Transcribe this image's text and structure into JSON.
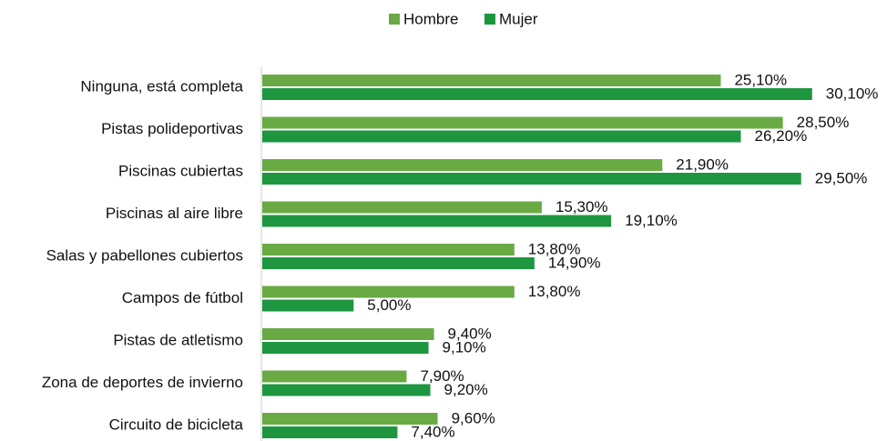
{
  "chart_data": {
    "type": "bar",
    "orientation": "horizontal",
    "categories": [
      "Ninguna, está completa",
      "Pistas polideportivas",
      "Piscinas cubiertas",
      "Piscinas al aire libre",
      "Salas y pabellones cubiertos",
      "Campos de fútbol",
      "Pistas de atletismo",
      "Zona de deportes de invierno",
      "Circuito de bicicleta"
    ],
    "series": [
      {
        "name": "Hombre",
        "color": "#6aaa45",
        "values": [
          25.1,
          28.5,
          21.9,
          15.3,
          13.8,
          13.8,
          9.4,
          7.9,
          9.6
        ],
        "value_labels": [
          "25,10%",
          "28,50%",
          "21,90%",
          "15,30%",
          "13,80%",
          "13,80%",
          "9,40%",
          "7,90%",
          "9,60%"
        ]
      },
      {
        "name": "Mujer",
        "color": "#1e9640",
        "values": [
          30.1,
          26.2,
          29.5,
          19.1,
          14.9,
          5.0,
          9.1,
          9.2,
          7.4
        ],
        "value_labels": [
          "30,10%",
          "26,20%",
          "29,50%",
          "19,10%",
          "14,90%",
          "5,00%",
          "9,10%",
          "9,20%",
          "7,40%"
        ]
      }
    ],
    "xlim": [
      0,
      34
    ],
    "legend": "top"
  }
}
